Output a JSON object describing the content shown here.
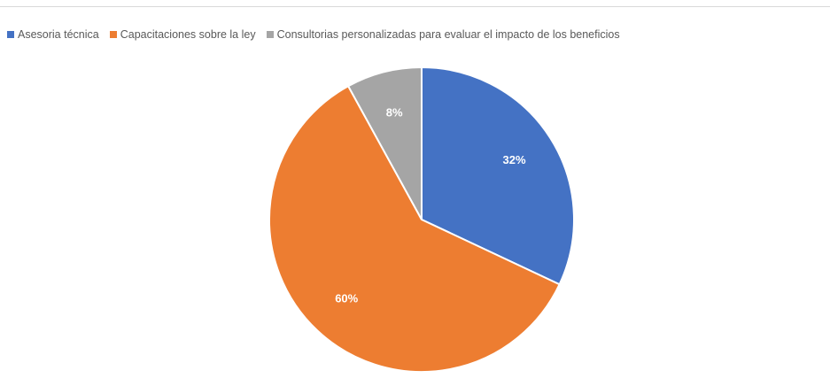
{
  "chart_data": {
    "type": "pie",
    "categories": [
      "Asesoria técnica",
      "Capacitaciones sobre la ley",
      "Consultorias personalizadas para evaluar el impacto de los beneficios"
    ],
    "values": [
      32,
      60,
      8
    ],
    "data_labels": [
      "32%",
      "60%",
      "8%"
    ],
    "colors": [
      "#4472c4",
      "#ed7d31",
      "#a5a5a5"
    ],
    "start_angle_deg": 0,
    "direction": "clockwise",
    "legend_position": "top",
    "title": ""
  },
  "legend": {
    "items": [
      {
        "label": "Asesoria técnica",
        "color": "#4472c4"
      },
      {
        "label": "Capacitaciones sobre la ley",
        "color": "#ed7d31"
      },
      {
        "label": "Consultorias personalizadas para evaluar el impacto de los beneficios",
        "color": "#a5a5a5"
      }
    ]
  }
}
